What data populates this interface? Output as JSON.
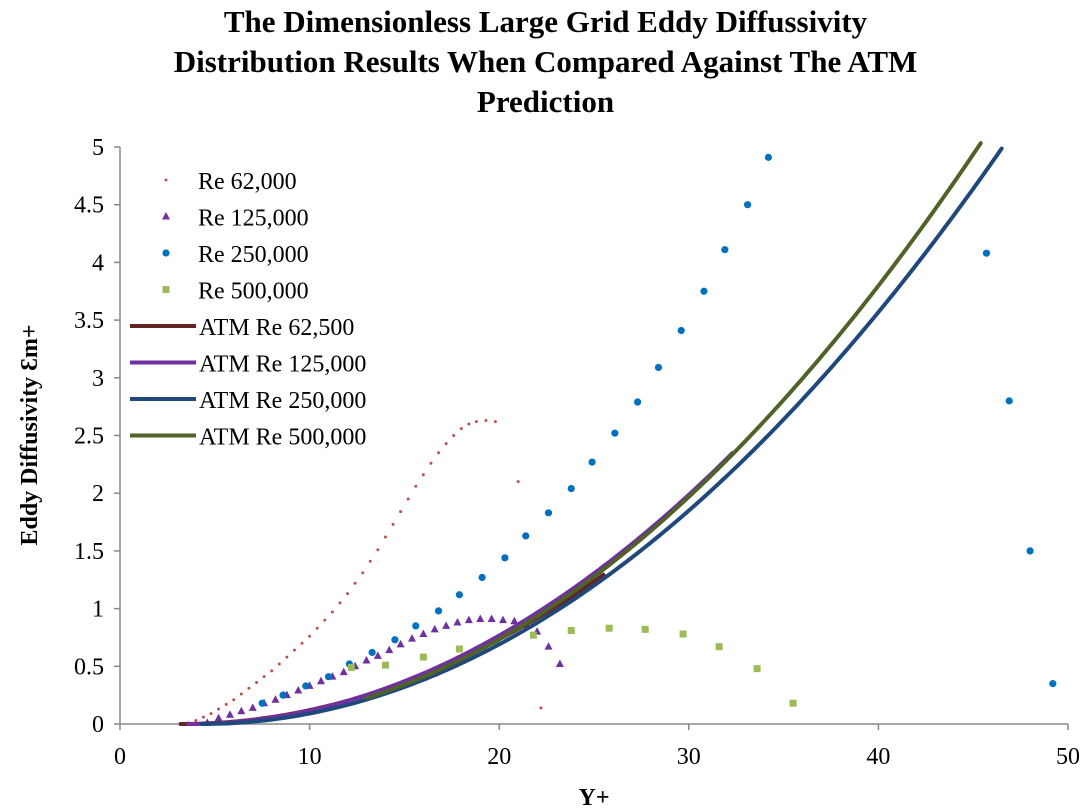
{
  "chart_data": {
    "type": "scatter",
    "title_lines": [
      "The Dimensionless Large Grid Eddy Diffussivity",
      "Distribution Results When Compared Against The ATM",
      "Prediction"
    ],
    "xlabel": "Y+",
    "ylabel": "Eddy Diffusivity Ɛm+",
    "xlim": [
      0,
      50
    ],
    "ylim": [
      0,
      5
    ],
    "xticks": [
      "0",
      "10",
      "20",
      "30",
      "40",
      "50"
    ],
    "yticks": [
      "0",
      "0.5",
      "1",
      "1.5",
      "2",
      "2.5",
      "3",
      "3.5",
      "4",
      "4.5",
      "5"
    ],
    "grid": false,
    "legend_position": "top-left",
    "series": [
      {
        "name": "Re 62,000",
        "kind": "points",
        "marker": "dot-small",
        "color": "#c0504d",
        "points": [
          [
            3.6,
            0.01
          ],
          [
            4.0,
            0.03
          ],
          [
            4.4,
            0.06
          ],
          [
            4.8,
            0.09
          ],
          [
            5.2,
            0.13
          ],
          [
            5.6,
            0.17
          ],
          [
            6.0,
            0.21
          ],
          [
            6.4,
            0.26
          ],
          [
            6.8,
            0.31
          ],
          [
            7.2,
            0.36
          ],
          [
            7.6,
            0.41
          ],
          [
            8.0,
            0.46
          ],
          [
            8.4,
            0.52
          ],
          [
            8.8,
            0.58
          ],
          [
            9.2,
            0.64
          ],
          [
            9.6,
            0.7
          ],
          [
            10.0,
            0.76
          ],
          [
            10.4,
            0.83
          ],
          [
            10.8,
            0.9
          ],
          [
            11.2,
            0.97
          ],
          [
            11.6,
            1.05
          ],
          [
            12.0,
            1.13
          ],
          [
            12.4,
            1.22
          ],
          [
            12.8,
            1.31
          ],
          [
            13.2,
            1.41
          ],
          [
            13.6,
            1.51
          ],
          [
            14.0,
            1.62
          ],
          [
            14.4,
            1.73
          ],
          [
            14.8,
            1.84
          ],
          [
            15.2,
            1.95
          ],
          [
            15.6,
            2.06
          ],
          [
            16.0,
            2.16
          ],
          [
            16.4,
            2.26
          ],
          [
            16.8,
            2.35
          ],
          [
            17.2,
            2.43
          ],
          [
            17.6,
            2.5
          ],
          [
            18.0,
            2.56
          ],
          [
            18.4,
            2.6
          ],
          [
            18.8,
            2.62
          ],
          [
            19.3,
            2.63
          ],
          [
            19.8,
            2.62
          ],
          [
            21.0,
            2.1
          ],
          [
            22.2,
            0.14
          ]
        ]
      },
      {
        "name": "Re 125,000",
        "kind": "points",
        "marker": "triangle",
        "color": "#7030a0",
        "points": [
          [
            4.6,
            0.01
          ],
          [
            5.2,
            0.05
          ],
          [
            5.8,
            0.08
          ],
          [
            6.4,
            0.11
          ],
          [
            7.0,
            0.14
          ],
          [
            7.6,
            0.18
          ],
          [
            8.2,
            0.21
          ],
          [
            8.8,
            0.25
          ],
          [
            9.4,
            0.29
          ],
          [
            10.0,
            0.33
          ],
          [
            10.6,
            0.37
          ],
          [
            11.2,
            0.41
          ],
          [
            11.8,
            0.45
          ],
          [
            12.4,
            0.5
          ],
          [
            13.0,
            0.55
          ],
          [
            13.6,
            0.59
          ],
          [
            14.2,
            0.64
          ],
          [
            14.8,
            0.69
          ],
          [
            15.4,
            0.74
          ],
          [
            16.0,
            0.78
          ],
          [
            16.6,
            0.82
          ],
          [
            17.2,
            0.85
          ],
          [
            17.8,
            0.88
          ],
          [
            18.4,
            0.9
          ],
          [
            19.0,
            0.91
          ],
          [
            19.6,
            0.91
          ],
          [
            20.2,
            0.9
          ],
          [
            20.8,
            0.89
          ],
          [
            21.4,
            0.86
          ],
          [
            22.0,
            0.8
          ],
          [
            22.6,
            0.67
          ],
          [
            23.2,
            0.52
          ]
        ]
      },
      {
        "name": "Re 250,000",
        "kind": "points",
        "marker": "circle",
        "color": "#0070c0",
        "points": [
          [
            7.5,
            0.18
          ],
          [
            8.6,
            0.25
          ],
          [
            9.8,
            0.33
          ],
          [
            11.0,
            0.41
          ],
          [
            12.1,
            0.52
          ],
          [
            13.3,
            0.62
          ],
          [
            14.5,
            0.73
          ],
          [
            15.6,
            0.85
          ],
          [
            16.8,
            0.98
          ],
          [
            17.9,
            1.12
          ],
          [
            19.1,
            1.27
          ],
          [
            20.3,
            1.44
          ],
          [
            21.4,
            1.63
          ],
          [
            22.6,
            1.83
          ],
          [
            23.8,
            2.04
          ],
          [
            24.9,
            2.27
          ],
          [
            26.1,
            2.52
          ],
          [
            27.3,
            2.79
          ],
          [
            28.4,
            3.09
          ],
          [
            29.6,
            3.41
          ],
          [
            30.8,
            3.75
          ],
          [
            31.9,
            4.11
          ],
          [
            33.1,
            4.5
          ],
          [
            34.2,
            4.91
          ],
          [
            45.7,
            4.08
          ],
          [
            46.9,
            2.8
          ],
          [
            48.0,
            1.5
          ],
          [
            49.2,
            0.35
          ]
        ]
      },
      {
        "name": "Re 500,000",
        "kind": "points",
        "marker": "square",
        "color": "#9bbb59",
        "points": [
          [
            12.2,
            0.49
          ],
          [
            14.0,
            0.51
          ],
          [
            16.0,
            0.58
          ],
          [
            17.9,
            0.65
          ],
          [
            19.9,
            0.71
          ],
          [
            21.8,
            0.77
          ],
          [
            23.8,
            0.81
          ],
          [
            25.8,
            0.83
          ],
          [
            27.7,
            0.82
          ],
          [
            29.7,
            0.78
          ],
          [
            31.6,
            0.67
          ],
          [
            33.6,
            0.48
          ],
          [
            35.5,
            0.18
          ]
        ]
      },
      {
        "name": "ATM Re 62,500",
        "kind": "line",
        "color": "#632523",
        "x_range": [
          3.2,
          25.5
        ],
        "coeff": 0.0026,
        "x0": 3.2,
        "exponent": 2.0
      },
      {
        "name": "ATM Re 125,000",
        "kind": "line",
        "color": "#7030a0",
        "x_range": [
          3.6,
          32.3
        ],
        "coeff": 0.00285,
        "x0": 3.6,
        "exponent": 2.0
      },
      {
        "name": "ATM Re 250,000",
        "kind": "line",
        "color": "#1f497d",
        "x_range": [
          4.3,
          46.5
        ],
        "coeff": 0.0028,
        "x0": 4.3,
        "exponent": 2.0
      },
      {
        "name": "ATM Re 500,000",
        "kind": "line",
        "color": "#4f6228",
        "x_range": [
          13.0,
          45.6
        ],
        "coeff": 0.00298,
        "x0": 4.3,
        "exponent": 2.0
      }
    ]
  }
}
